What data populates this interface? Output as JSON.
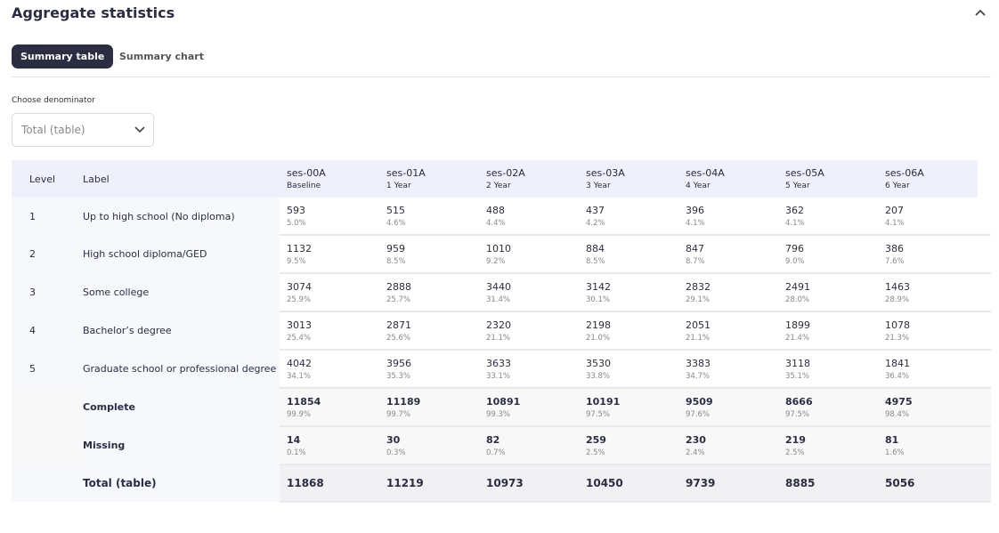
{
  "header": {
    "title": "Aggregate statistics"
  },
  "tabs": [
    "Summary table",
    "Summary chart"
  ],
  "denominator": {
    "label": "Choose denominator",
    "value": "Total (table)"
  },
  "table": {
    "head": {
      "level": "Level",
      "label": "Label"
    },
    "columns": [
      {
        "name": "ses-00A",
        "sub": "Baseline"
      },
      {
        "name": "ses-01A",
        "sub": "1 Year"
      },
      {
        "name": "ses-02A",
        "sub": "2 Year"
      },
      {
        "name": "ses-03A",
        "sub": "3 Year"
      },
      {
        "name": "ses-04A",
        "sub": "4 Year"
      },
      {
        "name": "ses-05A",
        "sub": "5 Year"
      },
      {
        "name": "ses-06A",
        "sub": "6 Year"
      }
    ],
    "rows": [
      {
        "level": 1,
        "label": "Up to high school (No diploma)",
        "cells": [
          {
            "n": 593,
            "pct": "5.0%"
          },
          {
            "n": 515,
            "pct": "4.6%"
          },
          {
            "n": 488,
            "pct": "4.4%"
          },
          {
            "n": 437,
            "pct": "4.2%"
          },
          {
            "n": 396,
            "pct": "4.1%"
          },
          {
            "n": 362,
            "pct": "4.1%"
          },
          {
            "n": 207,
            "pct": "4.1%"
          }
        ]
      },
      {
        "level": 2,
        "label": "High school diploma/GED",
        "cells": [
          {
            "n": 1132,
            "pct": "9.5%"
          },
          {
            "n": 959,
            "pct": "8.5%"
          },
          {
            "n": 1010,
            "pct": "9.2%"
          },
          {
            "n": 884,
            "pct": "8.5%"
          },
          {
            "n": 847,
            "pct": "8.7%"
          },
          {
            "n": 796,
            "pct": "9.0%"
          },
          {
            "n": 386,
            "pct": "7.6%"
          }
        ]
      },
      {
        "level": 3,
        "label": "Some college",
        "cells": [
          {
            "n": 3074,
            "pct": "25.9%"
          },
          {
            "n": 2888,
            "pct": "25.7%"
          },
          {
            "n": 3440,
            "pct": "31.4%"
          },
          {
            "n": 3142,
            "pct": "30.1%"
          },
          {
            "n": 2832,
            "pct": "29.1%"
          },
          {
            "n": 2491,
            "pct": "28.0%"
          },
          {
            "n": 1463,
            "pct": "28.9%"
          }
        ]
      },
      {
        "level": 4,
        "label": "Bachelor’s degree",
        "cells": [
          {
            "n": 3013,
            "pct": "25.4%"
          },
          {
            "n": 2871,
            "pct": "25.6%"
          },
          {
            "n": 2320,
            "pct": "21.1%"
          },
          {
            "n": 2198,
            "pct": "21.0%"
          },
          {
            "n": 2051,
            "pct": "21.1%"
          },
          {
            "n": 1899,
            "pct": "21.4%"
          },
          {
            "n": 1078,
            "pct": "21.3%"
          }
        ]
      },
      {
        "level": 5,
        "label": "Graduate school or professional degree",
        "cells": [
          {
            "n": 4042,
            "pct": "34.1%"
          },
          {
            "n": 3956,
            "pct": "35.3%"
          },
          {
            "n": 3633,
            "pct": "33.1%"
          },
          {
            "n": 3530,
            "pct": "33.8%"
          },
          {
            "n": 3383,
            "pct": "34.7%"
          },
          {
            "n": 3118,
            "pct": "35.1%"
          },
          {
            "n": 1841,
            "pct": "36.4%"
          }
        ]
      }
    ],
    "summary": [
      {
        "label": "Complete",
        "cells": [
          {
            "n": 11854,
            "pct": "99.9%"
          },
          {
            "n": 11189,
            "pct": "99.7%"
          },
          {
            "n": 10891,
            "pct": "99.3%"
          },
          {
            "n": 10191,
            "pct": "97.5%"
          },
          {
            "n": 9509,
            "pct": "97.6%"
          },
          {
            "n": 8666,
            "pct": "97.5%"
          },
          {
            "n": 4975,
            "pct": "98.4%"
          }
        ]
      },
      {
        "label": "Missing",
        "cells": [
          {
            "n": 14,
            "pct": "0.1%"
          },
          {
            "n": 30,
            "pct": "0.3%"
          },
          {
            "n": 82,
            "pct": "0.7%"
          },
          {
            "n": 259,
            "pct": "2.5%"
          },
          {
            "n": 230,
            "pct": "2.4%"
          },
          {
            "n": 219,
            "pct": "2.5%"
          },
          {
            "n": 81,
            "pct": "1.6%"
          }
        ]
      }
    ],
    "total": {
      "label": "Total (table)",
      "values": [
        11868,
        11219,
        10973,
        10450,
        9739,
        8885,
        5056
      ]
    }
  }
}
